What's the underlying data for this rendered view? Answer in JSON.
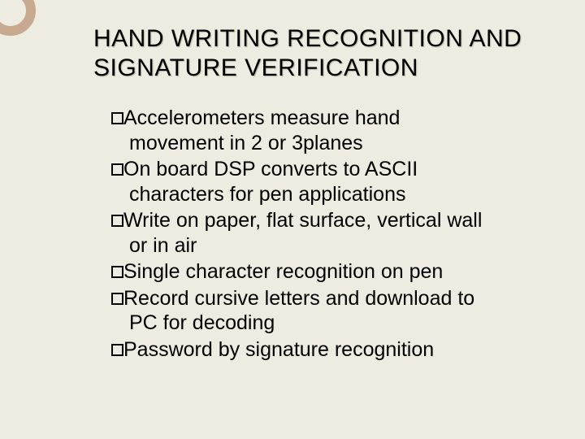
{
  "slide": {
    "background_color": "#eeece1",
    "accent_color": "#c6a98f",
    "title": "HAND WRITING RECOGNITION AND SIGNATURE VERIFICATION",
    "title_fontsize": 30,
    "body_fontsize": 25,
    "bullets": [
      {
        "lead": "Accelerometers",
        "rest": " measure hand",
        "cont": "movement in 2 or 3planes"
      },
      {
        "lead": "On",
        "rest": " board DSP converts to ASCII",
        "cont": "characters for pen applications"
      },
      {
        "lead": "Write",
        "rest": " on paper, flat surface, vertical wall",
        "cont": "or in air"
      },
      {
        "lead": "Single",
        "rest": " character recognition on pen",
        "cont": ""
      },
      {
        "lead": "Record",
        "rest": " cursive letters and download to",
        "cont": "PC for decoding"
      },
      {
        "lead": "Password",
        "rest": " by signature recognition",
        "cont": ""
      }
    ]
  }
}
